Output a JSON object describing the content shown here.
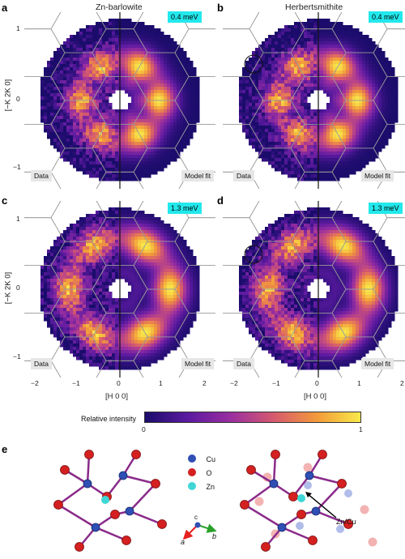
{
  "columns": {
    "left": "Zn-barlowite",
    "right": "Herbertsmithite"
  },
  "panels": [
    {
      "letter": "a",
      "energy": "0.4 meV",
      "data_label": "Data",
      "fit_label": "Model fit"
    },
    {
      "letter": "b",
      "energy": "0.4 meV",
      "data_label": "Data",
      "fit_label": "Model fit"
    },
    {
      "letter": "c",
      "energy": "1.3 meV",
      "data_label": "Data",
      "fit_label": "Model fit"
    },
    {
      "letter": "d",
      "energy": "1.3 meV",
      "data_label": "Data",
      "fit_label": "Model fit"
    }
  ],
  "axes": {
    "y_label": "[−K 2K 0]",
    "x_label": "[H 0 0]",
    "y_ticks": [
      "1",
      "0",
      "−1"
    ],
    "x_ticks": [
      "−2",
      "−1",
      "0",
      "1",
      "2"
    ]
  },
  "colorbar": {
    "label": "Relative intensity",
    "min": "0",
    "max": "1",
    "colors": [
      "#1b0c6b",
      "#5b1aa0",
      "#9b2fa0",
      "#d65a6e",
      "#f39b3a",
      "#f8e94a"
    ]
  },
  "panel_e": {
    "letter": "e",
    "legend": [
      {
        "symbol": "Cu",
        "color": "#2f4fb5"
      },
      {
        "symbol": "O",
        "color": "#d42020"
      },
      {
        "symbol": "Zn",
        "color": "#3fd6d6"
      }
    ],
    "axes_labels": {
      "a": "a",
      "b": "b",
      "c": "c"
    },
    "annotation": "Zn/Cu"
  }
}
